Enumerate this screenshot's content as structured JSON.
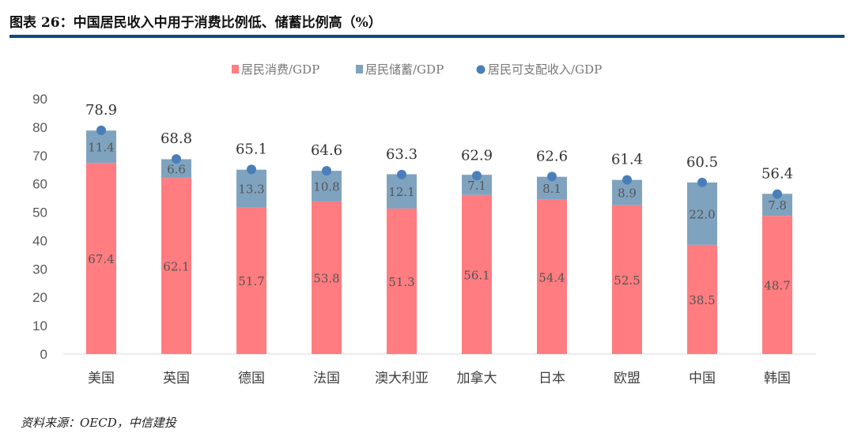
{
  "title": "图表 26：中国居民收入中用于消费比例低、储蓄比例高（%）",
  "source": "资料来源：OECD，中信建投",
  "colors": {
    "consumption": "#ff7c80",
    "savings": "#7fa3bf",
    "income": "#4a7ebb",
    "rule": "#0e4a80"
  },
  "chart_data": {
    "type": "bar",
    "stacked": true,
    "title": "",
    "xlabel": "",
    "ylabel": "",
    "ylim": [
      0,
      90
    ],
    "yticks": [
      0,
      10,
      20,
      30,
      40,
      50,
      60,
      70,
      80,
      90
    ],
    "grid": false,
    "legend_position": "top",
    "categories": [
      "美国",
      "英国",
      "德国",
      "法国",
      "澳大利亚",
      "加拿大",
      "日本",
      "欧盟",
      "中国",
      "韩国"
    ],
    "series": [
      {
        "name": "居民消费/GDP",
        "kind": "bar",
        "values": [
          67.4,
          62.1,
          51.7,
          53.8,
          51.3,
          56.1,
          54.4,
          52.5,
          38.5,
          48.7
        ],
        "labels": [
          "67.4",
          "62.1",
          "51.7",
          "53.8",
          "51.3",
          "56.1",
          "54.4",
          "52.5",
          "38.5",
          "48.7"
        ]
      },
      {
        "name": "居民储蓄/GDP",
        "kind": "bar",
        "values": [
          11.4,
          6.6,
          13.3,
          10.8,
          12.1,
          7.1,
          8.1,
          8.9,
          22.0,
          7.8
        ],
        "labels": [
          "11.4",
          "6.6",
          "13.3",
          "10.8",
          "12.1",
          "7.1",
          "8.1",
          "8.9",
          "22.0",
          "7.8"
        ]
      },
      {
        "name": "居民可支配收入/GDP",
        "kind": "scatter",
        "values": [
          78.9,
          68.8,
          65.1,
          64.6,
          63.3,
          62.9,
          62.6,
          61.4,
          60.5,
          56.4
        ],
        "labels": [
          "78.9",
          "68.8",
          "65.1",
          "64.6",
          "63.3",
          "62.9",
          "62.6",
          "61.4",
          "60.5",
          "56.4"
        ]
      }
    ]
  }
}
